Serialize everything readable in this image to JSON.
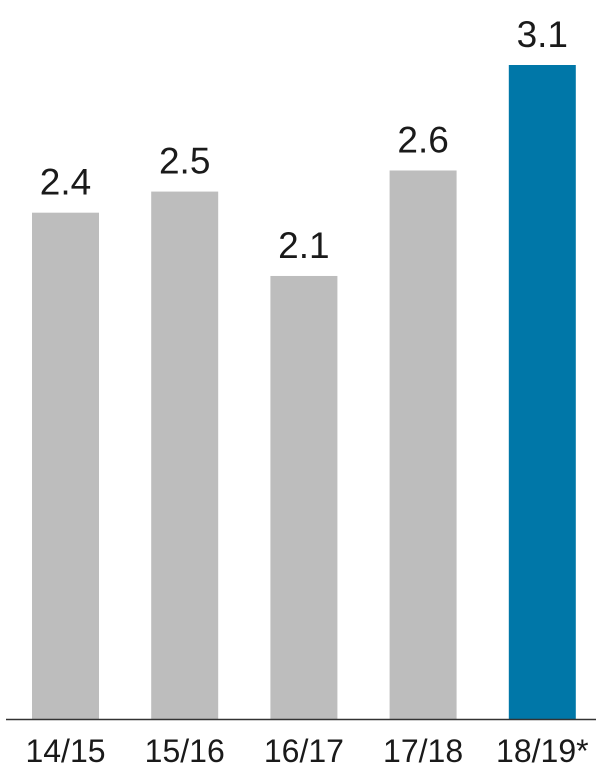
{
  "chart_data": {
    "type": "bar",
    "categories": [
      "14/15",
      "15/16",
      "16/17",
      "17/18",
      "18/19*"
    ],
    "values": [
      2.4,
      2.5,
      2.1,
      2.6,
      3.1
    ],
    "value_labels": [
      "2.4",
      "2.5",
      "2.1",
      "2.6",
      "3.1"
    ],
    "colors": [
      "#bdbdbd",
      "#bdbdbd",
      "#bdbdbd",
      "#bdbdbd",
      "#0077a8"
    ],
    "axis_line_color": "#333333",
    "ylim": [
      0,
      3.1
    ],
    "grid": false,
    "title": "",
    "xlabel": "",
    "ylabel": ""
  }
}
